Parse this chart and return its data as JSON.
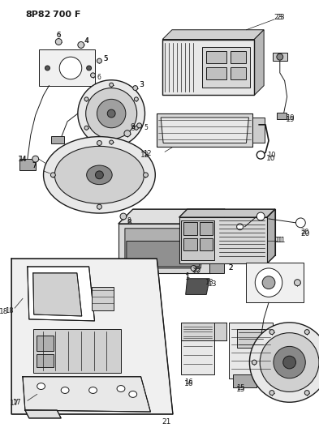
{
  "background_color": "#ffffff",
  "line_color": "#1a1a1a",
  "figsize": [
    3.93,
    5.33
  ],
  "dpi": 100,
  "header": "8P82  700 F"
}
